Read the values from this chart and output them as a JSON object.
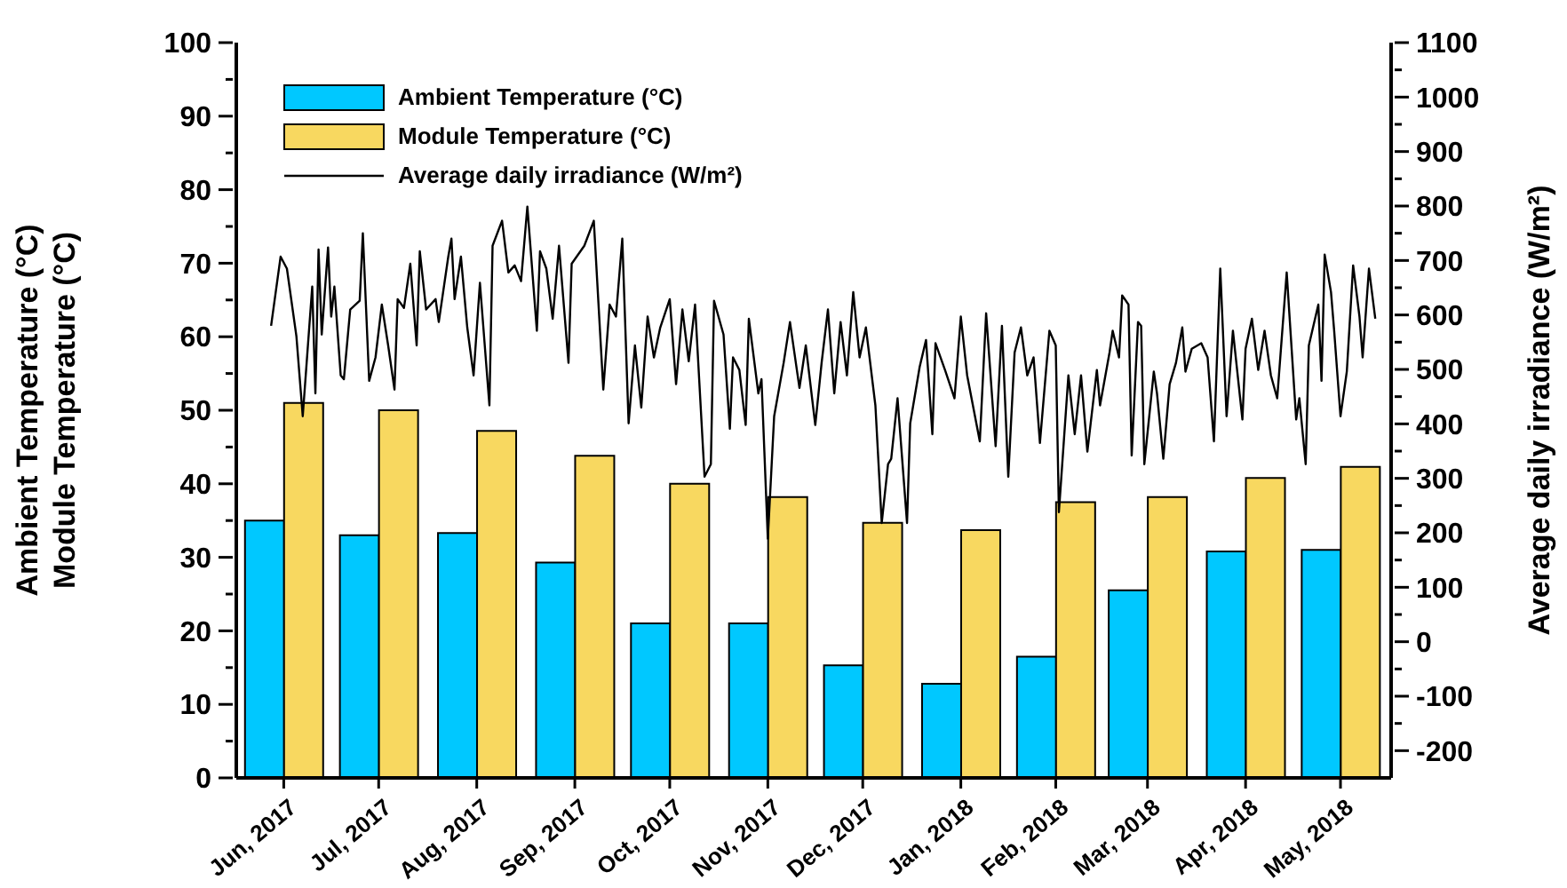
{
  "chart_data": {
    "type": "bar",
    "ylabel": "Ambient Temperature (°C)\nModule Temperature (°C)",
    "y2label": "Average daily irradiance (W/m²)",
    "x": [
      "2017-06-16",
      "2017-07-16",
      "2017-08-16",
      "2017-09-16",
      "2017-10-16",
      "2017-11-16",
      "2017-12-16",
      "2018-01-16",
      "2018-02-15",
      "2018-03-16",
      "2018-04-16",
      "2018-05-16"
    ],
    "xlim": [
      "2017-06-01",
      "2018-06-01"
    ],
    "xticks": [
      {
        "value": "2017-06-16",
        "label": "Jun, 2017"
      },
      {
        "value": "2017-07-16",
        "label": "Jul, 2017"
      },
      {
        "value": "2017-08-16",
        "label": "Aug, 2017"
      },
      {
        "value": "2017-09-16",
        "label": "Sep, 2017"
      },
      {
        "value": "2017-10-16",
        "label": "Oct, 2017"
      },
      {
        "value": "2017-11-16",
        "label": "Nov, 2017"
      },
      {
        "value": "2017-12-16",
        "label": "Dec, 2017"
      },
      {
        "value": "2018-01-16",
        "label": "Jan, 2018"
      },
      {
        "value": "2018-02-15",
        "label": "Feb, 2018"
      },
      {
        "value": "2018-03-16",
        "label": "Mar, 2018"
      },
      {
        "value": "2018-04-16",
        "label": "Apr, 2018"
      },
      {
        "value": "2018-05-16",
        "label": "May, 2018"
      }
    ],
    "series": [
      {
        "name": "Ambient Temperature (°C)",
        "color": "#00c8ff",
        "values": [
          35,
          33,
          33.3,
          29.3,
          21,
          21,
          15.3,
          12.8,
          16.5,
          25.5,
          30.8,
          31
        ]
      },
      {
        "name": "Module Temperature (°C)",
        "color": "#f8d860",
        "values": [
          51,
          50,
          47.2,
          43.8,
          40,
          38.2,
          34.7,
          33.7,
          37.5,
          38.2,
          40.8,
          42.3
        ]
      },
      {
        "name": "Average daily irradiance (W/m²)",
        "type": "line",
        "axis": "y2",
        "color": "#000000",
        "x": [
          "2017-06-12",
          "2017-06-15",
          "2017-06-17",
          "2017-06-20",
          "2017-06-22",
          "2017-06-25",
          "2017-06-26",
          "2017-06-27",
          "2017-06-28",
          "2017-06-30",
          "2017-07-01",
          "2017-07-02",
          "2017-07-04",
          "2017-07-05",
          "2017-07-07",
          "2017-07-10",
          "2017-07-11",
          "2017-07-13",
          "2017-07-15",
          "2017-07-17",
          "2017-07-19",
          "2017-07-21",
          "2017-07-22",
          "2017-07-24",
          "2017-07-26",
          "2017-07-28",
          "2017-07-29",
          "2017-07-31",
          "2017-08-03",
          "2017-08-04",
          "2017-08-07",
          "2017-08-08",
          "2017-08-09",
          "2017-08-11",
          "2017-08-13",
          "2017-08-15",
          "2017-08-17",
          "2017-08-20",
          "2017-08-21",
          "2017-08-24",
          "2017-08-26",
          "2017-08-28",
          "2017-08-30",
          "2017-09-01",
          "2017-09-04",
          "2017-09-05",
          "2017-09-07",
          "2017-09-09",
          "2017-09-11",
          "2017-09-14",
          "2017-09-15",
          "2017-09-19",
          "2017-09-22",
          "2017-09-25",
          "2017-09-27",
          "2017-09-29",
          "2017-10-01",
          "2017-10-03",
          "2017-10-05",
          "2017-10-07",
          "2017-10-09",
          "2017-10-11",
          "2017-10-13",
          "2017-10-16",
          "2017-10-18",
          "2017-10-20",
          "2017-10-22",
          "2017-10-24",
          "2017-10-27",
          "2017-10-29",
          "2017-10-30",
          "2017-11-02",
          "2017-11-04",
          "2017-11-05",
          "2017-11-07",
          "2017-11-09",
          "2017-11-10",
          "2017-11-13",
          "2017-11-14",
          "2017-11-16",
          "2017-11-18",
          "2017-11-21",
          "2017-11-23",
          "2017-11-26",
          "2017-11-28",
          "2017-12-01",
          "2017-12-03",
          "2017-12-05",
          "2017-12-07",
          "2017-12-09",
          "2017-12-11",
          "2017-12-13",
          "2017-12-15",
          "2017-12-17",
          "2017-12-20",
          "2017-12-22",
          "2017-12-24",
          "2017-12-25",
          "2017-12-27",
          "2017-12-30",
          "2017-12-31",
          "2018-01-03",
          "2018-01-05",
          "2018-01-07",
          "2018-01-08",
          "2018-01-11",
          "2018-01-14",
          "2018-01-16",
          "2018-01-18",
          "2018-01-22",
          "2018-01-24",
          "2018-01-27",
          "2018-01-29",
          "2018-01-31",
          "2018-02-02",
          "2018-02-04",
          "2018-02-06",
          "2018-02-08",
          "2018-02-10",
          "2018-02-13",
          "2018-02-15",
          "2018-02-16",
          "2018-02-19",
          "2018-02-21",
          "2018-02-23",
          "2018-02-25",
          "2018-02-28",
          "2018-03-01",
          "2018-03-04",
          "2018-03-05",
          "2018-03-07",
          "2018-03-08",
          "2018-03-10",
          "2018-03-11",
          "2018-03-13",
          "2018-03-14",
          "2018-03-15",
          "2018-03-18",
          "2018-03-19",
          "2018-03-21",
          "2018-03-23",
          "2018-03-25",
          "2018-03-27",
          "2018-03-28",
          "2018-03-30",
          "2018-04-02",
          "2018-04-04",
          "2018-04-06",
          "2018-04-08",
          "2018-04-10",
          "2018-04-12",
          "2018-04-15",
          "2018-04-16",
          "2018-04-18",
          "2018-04-20",
          "2018-04-22",
          "2018-04-24",
          "2018-04-26",
          "2018-04-29",
          "2018-05-02",
          "2018-05-03",
          "2018-05-05",
          "2018-05-06",
          "2018-05-09",
          "2018-05-10",
          "2018-05-11",
          "2018-05-13",
          "2018-05-14",
          "2018-05-16",
          "2018-05-18",
          "2018-05-20",
          "2018-05-22",
          "2018-05-23",
          "2018-05-25",
          "2018-05-27"
        ],
        "values": [
          580,
          707,
          685,
          561,
          414,
          652,
          456,
          720,
          564,
          724,
          597,
          652,
          489,
          482,
          610,
          626,
          750,
          479,
          522,
          619,
          544,
          463,
          629,
          613,
          694,
          544,
          717,
          610,
          629,
          587,
          707,
          740,
          629,
          707,
          577,
          489,
          659,
          434,
          727,
          773,
          678,
          691,
          662,
          799,
          571,
          717,
          685,
          593,
          727,
          512,
          694,
          727,
          773,
          463,
          619,
          597,
          740,
          401,
          544,
          430,
          597,
          522,
          577,
          629,
          473,
          610,
          515,
          619,
          303,
          326,
          626,
          564,
          391,
          522,
          499,
          398,
          593,
          456,
          482,
          189,
          414,
          512,
          587,
          466,
          544,
          398,
          512,
          610,
          456,
          587,
          489,
          642,
          522,
          577,
          434,
          218,
          326,
          336,
          447,
          218,
          401,
          505,
          554,
          381,
          548,
          499,
          447,
          597,
          489,
          368,
          603,
          359,
          580,
          303,
          531,
          577,
          489,
          522,
          365,
          571,
          544,
          238,
          489,
          381,
          489,
          349,
          499,
          434,
          531,
          571,
          522,
          636,
          619,
          342,
          587,
          580,
          326,
          496,
          456,
          336,
          473,
          512,
          577,
          496,
          538,
          548,
          522,
          368,
          685,
          414,
          571,
          408,
          538,
          593,
          499,
          571,
          489,
          447,
          678,
          408,
          447,
          326,
          544,
          619,
          479,
          711,
          642,
          571,
          414,
          496,
          691,
          597,
          522,
          685,
          593
        ]
      }
    ],
    "ylim": [
      0,
      100
    ],
    "yticks": [
      0,
      {
        "value": 5,
        "label": null
      },
      10,
      {
        "value": 15,
        "label": null
      },
      20,
      {
        "value": 25,
        "label": null
      },
      30,
      {
        "value": 35,
        "label": null
      },
      40,
      {
        "value": 45,
        "label": null
      },
      50,
      {
        "value": 55,
        "label": null
      },
      60,
      {
        "value": 65,
        "label": null
      },
      70,
      {
        "value": 75,
        "label": null
      },
      80,
      {
        "value": 85,
        "label": null
      },
      90,
      {
        "value": 95,
        "label": null
      },
      100
    ],
    "y2lim": [
      -250,
      1100
    ],
    "y2ticks": [
      -200,
      {
        "value": -150,
        "label": null
      },
      -100,
      {
        "value": -50,
        "label": null
      },
      0,
      {
        "value": 50,
        "label": null
      },
      100,
      {
        "value": 150,
        "label": null
      },
      200,
      {
        "value": 250,
        "label": null
      },
      300,
      {
        "value": 350,
        "label": null
      },
      400,
      {
        "value": 450,
        "label": null
      },
      500,
      {
        "value": 550,
        "label": null
      },
      600,
      {
        "value": 650,
        "label": null
      },
      700,
      {
        "value": 750,
        "label": null
      },
      800,
      {
        "value": 850,
        "label": null
      },
      900,
      {
        "value": 950,
        "label": null
      },
      1000,
      {
        "value": 1050,
        "label": null
      },
      1100
    ],
    "grid": false,
    "legend": "top left"
  }
}
